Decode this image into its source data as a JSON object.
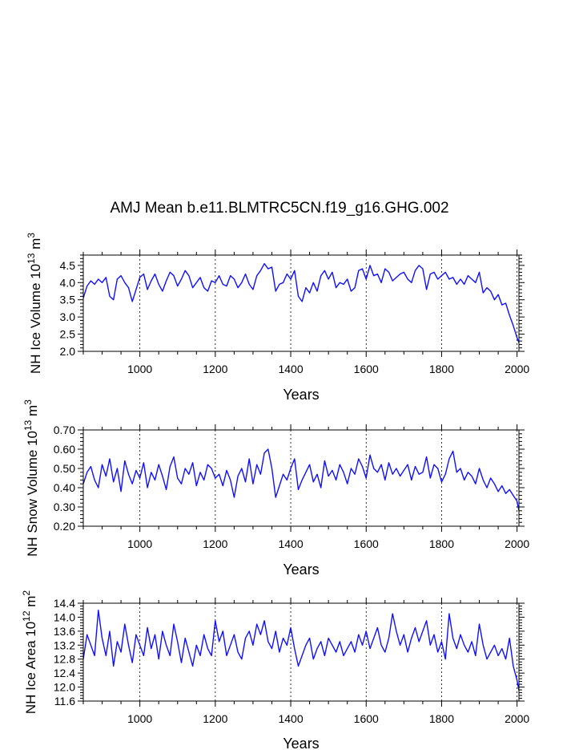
{
  "figure": {
    "title": "AMJ Mean b.e11.BLMTRC5CN.f19_g16.GHG.002"
  },
  "series_color": "#1010ff",
  "chart_data": [
    {
      "type": "line",
      "title": "AMJ Mean b.e11.BLMTRC5CN.f19_g16.GHG.002",
      "xlabel": "Years",
      "ylabel": "NH Ice Volume 10^13 m^3",
      "ylabel_parts": {
        "main": "NH Ice Volume 10",
        "exp1": "13",
        "unit": " m",
        "exp2": "3"
      },
      "xlim": [
        850,
        2005
      ],
      "ylim": [
        2.0,
        4.8
      ],
      "xticks": [
        "1000",
        "1200",
        "1400",
        "1600",
        "1800",
        "2000"
      ],
      "yticks": [
        "2.0",
        "2.5",
        "3.0",
        "3.5",
        "4.0",
        "4.5"
      ],
      "grid_x": [
        1000,
        1200,
        1400,
        1600,
        1800,
        2000
      ],
      "series": [
        {
          "name": "NH Ice Volume",
          "x": [
            850,
            860,
            870,
            880,
            890,
            900,
            910,
            920,
            930,
            940,
            950,
            960,
            970,
            980,
            990,
            1000,
            1010,
            1020,
            1030,
            1040,
            1050,
            1060,
            1070,
            1080,
            1090,
            1100,
            1110,
            1120,
            1130,
            1140,
            1150,
            1160,
            1170,
            1180,
            1190,
            1200,
            1210,
            1220,
            1230,
            1240,
            1250,
            1260,
            1270,
            1280,
            1290,
            1300,
            1310,
            1320,
            1330,
            1340,
            1350,
            1360,
            1370,
            1380,
            1390,
            1400,
            1410,
            1420,
            1430,
            1440,
            1450,
            1460,
            1470,
            1480,
            1490,
            1500,
            1510,
            1520,
            1530,
            1540,
            1550,
            1560,
            1570,
            1580,
            1590,
            1600,
            1610,
            1620,
            1630,
            1640,
            1650,
            1660,
            1670,
            1680,
            1690,
            1700,
            1710,
            1720,
            1730,
            1740,
            1750,
            1760,
            1770,
            1780,
            1790,
            1800,
            1810,
            1820,
            1830,
            1840,
            1850,
            1860,
            1870,
            1880,
            1890,
            1900,
            1910,
            1920,
            1930,
            1940,
            1950,
            1960,
            1970,
            1980,
            1990,
            2000,
            2005
          ],
          "values": [
            3.55,
            3.9,
            4.05,
            3.95,
            4.1,
            4.0,
            4.15,
            3.6,
            3.5,
            4.1,
            4.2,
            4.0,
            3.85,
            3.45,
            3.8,
            4.15,
            4.25,
            3.8,
            4.05,
            4.25,
            3.95,
            3.75,
            4.05,
            4.3,
            4.2,
            3.9,
            4.1,
            4.35,
            4.2,
            3.85,
            4.0,
            4.15,
            3.85,
            3.75,
            4.05,
            4.0,
            4.2,
            3.95,
            3.9,
            4.2,
            4.1,
            3.85,
            4.0,
            4.25,
            3.95,
            3.8,
            4.2,
            4.35,
            4.55,
            4.4,
            4.45,
            3.75,
            3.95,
            4.0,
            4.25,
            4.1,
            4.35,
            3.6,
            3.45,
            3.85,
            3.7,
            4.0,
            3.75,
            4.2,
            4.35,
            4.1,
            4.3,
            3.85,
            4.0,
            3.95,
            4.1,
            3.75,
            3.85,
            4.35,
            4.4,
            4.1,
            4.5,
            4.2,
            4.25,
            4.0,
            4.4,
            4.3,
            4.05,
            4.15,
            4.25,
            4.3,
            4.1,
            4.0,
            4.35,
            4.5,
            4.4,
            3.8,
            4.25,
            4.3,
            4.1,
            4.2,
            4.3,
            4.1,
            4.15,
            3.95,
            4.1,
            3.95,
            4.2,
            4.1,
            4.0,
            4.3,
            3.7,
            3.85,
            3.75,
            3.5,
            3.65,
            3.35,
            3.4,
            3.05,
            2.75,
            2.4,
            2.25
          ]
        }
      ]
    },
    {
      "type": "line",
      "xlabel": "Years",
      "ylabel": "NH Snow Volume 10^13 m^3",
      "ylabel_parts": {
        "main": "NH Snow Volume 10",
        "exp1": "13",
        "unit": " m",
        "exp2": "3"
      },
      "xlim": [
        850,
        2005
      ],
      "ylim": [
        0.2,
        0.7
      ],
      "xticks": [
        "1000",
        "1200",
        "1400",
        "1600",
        "1800",
        "2000"
      ],
      "yticks": [
        "0.20",
        "0.30",
        "0.40",
        "0.50",
        "0.60",
        "0.70"
      ],
      "grid_x": [
        1000,
        1200,
        1400,
        1600,
        1800,
        2000
      ],
      "series": [
        {
          "name": "NH Snow Volume",
          "x": [
            850,
            860,
            870,
            880,
            890,
            900,
            910,
            920,
            930,
            940,
            950,
            960,
            970,
            980,
            990,
            1000,
            1010,
            1020,
            1030,
            1040,
            1050,
            1060,
            1070,
            1080,
            1090,
            1100,
            1110,
            1120,
            1130,
            1140,
            1150,
            1160,
            1170,
            1180,
            1190,
            1200,
            1210,
            1220,
            1230,
            1240,
            1250,
            1260,
            1270,
            1280,
            1290,
            1300,
            1310,
            1320,
            1330,
            1340,
            1350,
            1360,
            1370,
            1380,
            1390,
            1400,
            1410,
            1420,
            1430,
            1440,
            1450,
            1460,
            1470,
            1480,
            1490,
            1500,
            1510,
            1520,
            1530,
            1540,
            1550,
            1560,
            1570,
            1580,
            1590,
            1600,
            1610,
            1620,
            1630,
            1640,
            1650,
            1660,
            1670,
            1680,
            1690,
            1700,
            1710,
            1720,
            1730,
            1740,
            1750,
            1760,
            1770,
            1780,
            1790,
            1800,
            1810,
            1820,
            1830,
            1840,
            1850,
            1860,
            1870,
            1880,
            1890,
            1900,
            1910,
            1920,
            1930,
            1940,
            1950,
            1960,
            1970,
            1980,
            1990,
            2000,
            2005
          ],
          "values": [
            0.42,
            0.48,
            0.51,
            0.44,
            0.4,
            0.52,
            0.46,
            0.55,
            0.43,
            0.5,
            0.38,
            0.54,
            0.47,
            0.42,
            0.49,
            0.45,
            0.53,
            0.4,
            0.48,
            0.44,
            0.52,
            0.46,
            0.39,
            0.51,
            0.56,
            0.45,
            0.42,
            0.5,
            0.47,
            0.53,
            0.41,
            0.48,
            0.44,
            0.52,
            0.5,
            0.45,
            0.47,
            0.41,
            0.49,
            0.44,
            0.35,
            0.46,
            0.5,
            0.43,
            0.55,
            0.42,
            0.52,
            0.47,
            0.58,
            0.6,
            0.5,
            0.35,
            0.41,
            0.47,
            0.44,
            0.5,
            0.55,
            0.39,
            0.44,
            0.48,
            0.52,
            0.43,
            0.47,
            0.4,
            0.54,
            0.46,
            0.49,
            0.44,
            0.52,
            0.48,
            0.42,
            0.5,
            0.47,
            0.55,
            0.51,
            0.45,
            0.57,
            0.5,
            0.48,
            0.52,
            0.44,
            0.53,
            0.47,
            0.5,
            0.46,
            0.49,
            0.52,
            0.44,
            0.51,
            0.47,
            0.48,
            0.56,
            0.45,
            0.52,
            0.5,
            0.43,
            0.47,
            0.55,
            0.59,
            0.48,
            0.5,
            0.44,
            0.48,
            0.46,
            0.42,
            0.5,
            0.44,
            0.4,
            0.45,
            0.42,
            0.38,
            0.41,
            0.37,
            0.39,
            0.36,
            0.33,
            0.28
          ]
        }
      ]
    },
    {
      "type": "line",
      "xlabel": "Years",
      "ylabel": "NH Ice Area 10^12 m^2",
      "ylabel_parts": {
        "main": "NH Ice Area 10",
        "exp1": "12",
        "unit": " m",
        "exp2": "2"
      },
      "xlim": [
        850,
        2005
      ],
      "ylim": [
        11.6,
        14.4
      ],
      "xticks": [
        "1000",
        "1200",
        "1400",
        "1600",
        "1800",
        "2000"
      ],
      "yticks": [
        "11.6",
        "12.0",
        "12.4",
        "12.8",
        "13.2",
        "13.6",
        "14.0",
        "14.4"
      ],
      "grid_x": [
        1000,
        1200,
        1400,
        1600,
        1800,
        2000
      ],
      "series": [
        {
          "name": "NH Ice Area",
          "x": [
            850,
            860,
            870,
            880,
            890,
            900,
            910,
            920,
            930,
            940,
            950,
            960,
            970,
            980,
            990,
            1000,
            1010,
            1020,
            1030,
            1040,
            1050,
            1060,
            1070,
            1080,
            1090,
            1100,
            1110,
            1120,
            1130,
            1140,
            1150,
            1160,
            1170,
            1180,
            1190,
            1200,
            1210,
            1220,
            1230,
            1240,
            1250,
            1260,
            1270,
            1280,
            1290,
            1300,
            1310,
            1320,
            1330,
            1340,
            1350,
            1360,
            1370,
            1380,
            1390,
            1400,
            1410,
            1420,
            1430,
            1440,
            1450,
            1460,
            1470,
            1480,
            1490,
            1500,
            1510,
            1520,
            1530,
            1540,
            1550,
            1560,
            1570,
            1580,
            1590,
            1600,
            1610,
            1620,
            1630,
            1640,
            1650,
            1660,
            1670,
            1680,
            1690,
            1700,
            1710,
            1720,
            1730,
            1740,
            1750,
            1760,
            1770,
            1780,
            1790,
            1800,
            1810,
            1820,
            1830,
            1840,
            1850,
            1860,
            1870,
            1880,
            1890,
            1900,
            1910,
            1920,
            1930,
            1940,
            1950,
            1960,
            1970,
            1980,
            1990,
            2000,
            2005
          ],
          "values": [
            12.8,
            13.5,
            13.2,
            12.9,
            14.2,
            13.4,
            12.9,
            13.6,
            12.6,
            13.3,
            13.0,
            13.8,
            13.2,
            12.7,
            13.5,
            13.2,
            12.9,
            13.7,
            13.1,
            13.5,
            12.8,
            13.6,
            13.2,
            12.9,
            13.8,
            13.3,
            12.7,
            13.4,
            13.0,
            12.6,
            13.2,
            12.9,
            13.5,
            13.1,
            12.9,
            13.9,
            13.3,
            13.6,
            12.9,
            13.2,
            13.5,
            13.0,
            12.8,
            13.4,
            13.6,
            13.2,
            13.8,
            13.5,
            13.9,
            13.3,
            13.1,
            13.6,
            13.0,
            13.4,
            13.2,
            13.7,
            13.1,
            12.6,
            12.9,
            13.2,
            13.4,
            12.8,
            13.1,
            13.3,
            12.9,
            13.4,
            13.2,
            13.0,
            13.3,
            12.9,
            13.1,
            13.3,
            13.0,
            13.5,
            13.2,
            13.6,
            13.1,
            13.4,
            13.7,
            13.2,
            13.0,
            13.4,
            14.1,
            13.6,
            13.2,
            13.5,
            13.0,
            13.4,
            13.7,
            13.3,
            13.6,
            13.9,
            13.2,
            13.5,
            13.0,
            13.3,
            12.8,
            14.1,
            13.4,
            13.1,
            13.5,
            13.2,
            13.0,
            13.3,
            12.9,
            13.8,
            13.2,
            12.8,
            13.0,
            13.2,
            12.9,
            13.1,
            12.8,
            13.4,
            12.6,
            12.2,
            11.9
          ]
        }
      ]
    }
  ]
}
